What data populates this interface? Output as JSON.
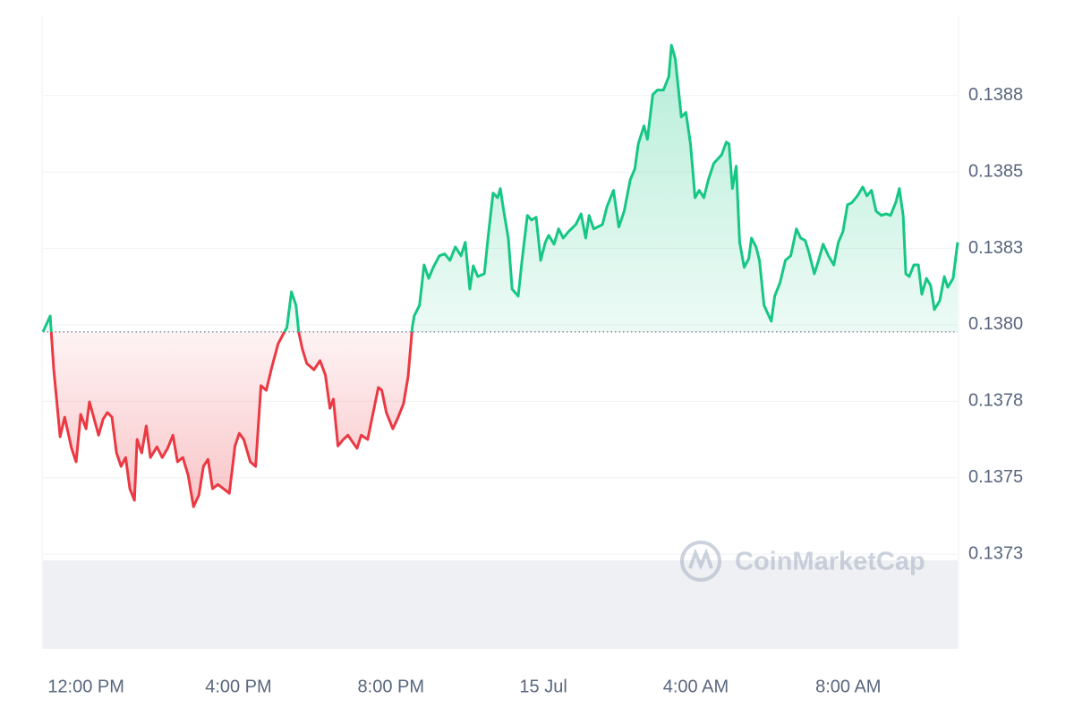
{
  "chart_data": {
    "type": "line",
    "watermark": "CoinMarketCap",
    "x": [
      10.87,
      11.06,
      11.15,
      11.32,
      11.44,
      11.62,
      11.74,
      11.86,
      12.0,
      12.09,
      12.33,
      12.45,
      12.56,
      12.68,
      12.8,
      12.92,
      13.04,
      13.15,
      13.27,
      13.34,
      13.46,
      13.58,
      13.69,
      13.86,
      14.0,
      14.14,
      14.28,
      14.4,
      14.54,
      14.68,
      14.82,
      14.96,
      15.08,
      15.2,
      15.32,
      15.46,
      15.76,
      15.91,
      16.02,
      16.14,
      16.31,
      16.45,
      16.59,
      16.73,
      16.87,
      17.04,
      17.18,
      17.27,
      17.39,
      17.51,
      17.58,
      17.67,
      17.79,
      17.98,
      18.14,
      18.28,
      18.4,
      18.49,
      18.61,
      18.75,
      18.87,
      19.11,
      19.22,
      19.39,
      19.51,
      19.67,
      19.76,
      19.88,
      20.05,
      20.19,
      20.33,
      20.45,
      20.56,
      20.61,
      20.75,
      20.87,
      20.99,
      21.11,
      21.27,
      21.41,
      21.55,
      21.69,
      21.84,
      21.95,
      22.07,
      22.16,
      22.28,
      22.45,
      22.56,
      22.68,
      22.8,
      22.87,
      22.96,
      23.08,
      23.18,
      23.34,
      23.44,
      23.58,
      23.69,
      23.81,
      23.93,
      24.05,
      24.14,
      24.28,
      24.4,
      24.52,
      24.66,
      24.85,
      24.99,
      25.11,
      25.2,
      25.32,
      25.55,
      25.67,
      25.84,
      25.98,
      26.12,
      26.28,
      26.4,
      26.49,
      26.64,
      26.73,
      26.87,
      26.99,
      27.15,
      27.29,
      27.36,
      27.46,
      27.62,
      27.74,
      27.86,
      27.98,
      28.09,
      28.21,
      28.33,
      28.47,
      28.68,
      28.8,
      28.87,
      28.96,
      29.06,
      29.15,
      29.27,
      29.39,
      29.46,
      29.58,
      29.67,
      29.79,
      29.98,
      30.07,
      30.21,
      30.35,
      30.49,
      30.64,
      30.75,
      30.87,
      30.96,
      31.11,
      31.22,
      31.34,
      31.48,
      31.62,
      31.74,
      31.86,
      31.98,
      32.09,
      32.24,
      32.38,
      32.49,
      32.61,
      32.73,
      32.87,
      32.99,
      33.11,
      33.25,
      33.34,
      33.44,
      33.51,
      33.6,
      33.72,
      33.84,
      33.93,
      34.05,
      34.16,
      34.26,
      34.4,
      34.52,
      34.61,
      34.75,
      34.87
    ],
    "series": [
      {
        "color": "#16c784",
        "negative_color": "#ea3943",
        "values": [
          0.137977,
          0.138029,
          0.137859,
          0.137634,
          0.137698,
          0.137596,
          0.137552,
          0.137707,
          0.13766,
          0.137748,
          0.137639,
          0.137692,
          0.137713,
          0.137698,
          0.137581,
          0.137537,
          0.137566,
          0.137464,
          0.137426,
          0.137625,
          0.137581,
          0.137669,
          0.137566,
          0.137601,
          0.137566,
          0.137596,
          0.137639,
          0.137552,
          0.137566,
          0.137508,
          0.137405,
          0.137443,
          0.137537,
          0.13756,
          0.137464,
          0.137478,
          0.137449,
          0.137604,
          0.137645,
          0.137625,
          0.137552,
          0.137537,
          0.137801,
          0.137786,
          0.137859,
          0.137938,
          0.137971,
          0.137991,
          0.138108,
          0.138064,
          0.137977,
          0.137924,
          0.137874,
          0.137853,
          0.137883,
          0.137836,
          0.137727,
          0.137757,
          0.137604,
          0.137625,
          0.137639,
          0.137596,
          0.137639,
          0.137625,
          0.137698,
          0.137795,
          0.137786,
          0.137713,
          0.13766,
          0.137698,
          0.137742,
          0.13783,
          0.137991,
          0.138029,
          0.138064,
          0.138196,
          0.138152,
          0.138188,
          0.138226,
          0.138232,
          0.138211,
          0.138255,
          0.138226,
          0.13827,
          0.138117,
          0.138193,
          0.138158,
          0.138167,
          0.138299,
          0.138431,
          0.138416,
          0.138446,
          0.138372,
          0.138284,
          0.138117,
          0.138094,
          0.138211,
          0.138358,
          0.138343,
          0.138352,
          0.138211,
          0.13827,
          0.138293,
          0.138264,
          0.138314,
          0.138284,
          0.138305,
          0.138328,
          0.138363,
          0.138284,
          0.138358,
          0.138314,
          0.138328,
          0.138387,
          0.13844,
          0.13832,
          0.138372,
          0.138475,
          0.13851,
          0.138592,
          0.138651,
          0.138607,
          0.138753,
          0.138768,
          0.138768,
          0.138812,
          0.138915,
          0.138871,
          0.13868,
          0.138695,
          0.138592,
          0.138416,
          0.13844,
          0.138416,
          0.138475,
          0.138528,
          0.138557,
          0.138598,
          0.138592,
          0.138446,
          0.138519,
          0.13827,
          0.138188,
          0.138217,
          0.138284,
          0.138255,
          0.138211,
          0.138064,
          0.138012,
          0.138094,
          0.138138,
          0.138211,
          0.138226,
          0.138314,
          0.138284,
          0.138276,
          0.13824,
          0.138167,
          0.138211,
          0.138264,
          0.138226,
          0.138196,
          0.13827,
          0.138305,
          0.138393,
          0.138399,
          0.138422,
          0.138451,
          0.138422,
          0.13844,
          0.138372,
          0.138358,
          0.138363,
          0.138358,
          0.138402,
          0.138446,
          0.138358,
          0.138167,
          0.138158,
          0.138196,
          0.138196,
          0.1381,
          0.138152,
          0.138129,
          0.13805,
          0.138079,
          0.138158,
          0.138123,
          0.138152,
          0.13827
        ]
      }
    ],
    "xlim": [
      10.87,
      34.87
    ],
    "xticks": [
      {
        "value": 12,
        "label": "12:00 PM"
      },
      {
        "value": 16,
        "label": "4:00 PM"
      },
      {
        "value": 20,
        "label": "8:00 PM"
      },
      {
        "value": 24,
        "label": "15 Jul"
      },
      {
        "value": 28,
        "label": "4:00 AM"
      },
      {
        "value": 32,
        "label": "8:00 AM"
      }
    ],
    "ylim": [
      0.13694,
      0.13901
    ],
    "yticks": [
      {
        "value": 0.13725,
        "label": "0.1373"
      },
      0.1375,
      {
        "value": 0.13775,
        "label": "0.1378"
      },
      {
        "value": 0.138,
        "label": "0.1380"
      },
      {
        "value": 0.13825,
        "label": "0.1383"
      },
      0.1385,
      {
        "value": 0.13875,
        "label": "0.1388"
      }
    ],
    "grid": true
  }
}
